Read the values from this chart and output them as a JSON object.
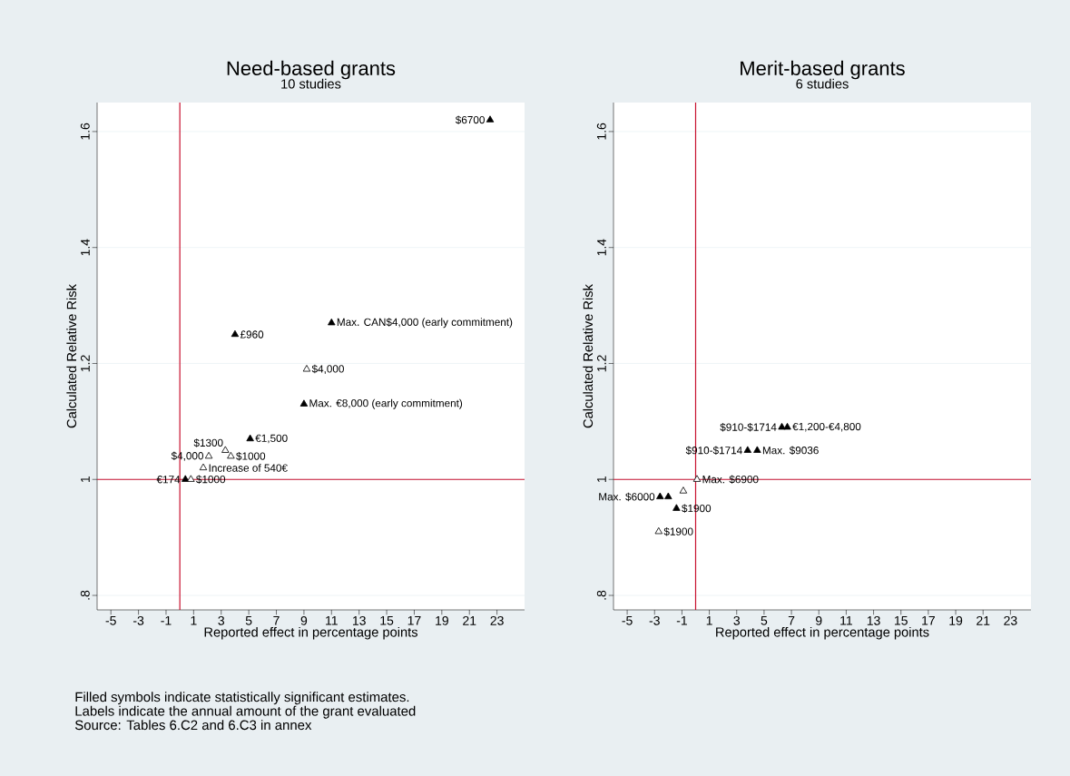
{
  "chart_data": [
    {
      "type": "scatter",
      "title": "Need-based grants",
      "subtitle": "10 studies",
      "xlabel": "Reported effect in percentage points",
      "ylabel": "Calculated Relative Risk",
      "xlim": [
        -6,
        25
      ],
      "ylim": [
        0.775,
        1.65
      ],
      "xticks": [
        -5,
        -3,
        -1,
        1,
        3,
        5,
        7,
        9,
        11,
        13,
        15,
        17,
        19,
        21,
        23
      ],
      "yticks": [
        {
          "value": 0.8,
          "label": ".8"
        },
        1,
        1.2,
        1.4,
        1.6
      ],
      "grid": "y",
      "marker": "triangle",
      "series": [
        {
          "color": "#000000",
          "x": [
            22.5,
            11.0,
            4.0,
            9.0,
            5.1,
            0.4
          ],
          "values": [
            1.62,
            1.27,
            1.25,
            1.13,
            1.07,
            1.0
          ]
        },
        {
          "color": "#ffffff",
          "x": [
            9.2,
            3.3,
            3.7,
            2.1,
            1.7,
            0.8
          ],
          "values": [
            1.19,
            1.05,
            1.04,
            1.04,
            1.02,
            1.0
          ]
        }
      ],
      "ref_lines": [
        {
          "axis": "x",
          "value": 0,
          "color": "#c8102e"
        },
        {
          "axis": "y",
          "value": 1,
          "color": "#c8102e"
        }
      ],
      "annotations": [
        {
          "text": "$6700",
          "x": 22.5,
          "y": 1.62
        },
        {
          "text": "Max. CAN$4,000 (early commitment)",
          "x": 11.0,
          "y": 1.27
        },
        {
          "text": "£960",
          "x": 4.0,
          "y": 1.25
        },
        {
          "text": "$4,000",
          "x": 9.2,
          "y": 1.19
        },
        {
          "text": "Max. €8,000 (early commitment)",
          "x": 9.0,
          "y": 1.13
        },
        {
          "text": "€1,500",
          "x": 5.1,
          "y": 1.07
        },
        {
          "text": "$1300",
          "x": 3.3,
          "y": 1.05
        },
        {
          "text": "$1000",
          "x": 3.7,
          "y": 1.04
        },
        {
          "text": "$4,000",
          "x": 2.1,
          "y": 1.04
        },
        {
          "text": "Increase of 540€",
          "x": 1.7,
          "y": 1.02
        },
        {
          "text": "€174",
          "x": 0.4,
          "y": 1.0
        },
        {
          "text": "$1000",
          "x": 0.8,
          "y": 1.0
        },
        "Filled symbols indicate statistically significant estimates.",
        "Labels indicate the annual amount of the grant evaluated",
        "Source: Tables 6.C2 and 6.C3 in annex"
      ]
    },
    {
      "type": "scatter",
      "title": "Merit-based grants",
      "subtitle": "6 studies",
      "xlabel": "Reported effect in percentage points",
      "ylabel": "Calculated Relative Risk",
      "xlim": [
        -6,
        24.5
      ],
      "ylim": [
        0.775,
        1.65
      ],
      "xticks": [
        -5,
        -3,
        -1,
        1,
        3,
        5,
        7,
        9,
        11,
        13,
        15,
        17,
        19,
        21,
        23
      ],
      "yticks": [
        {
          "value": 0.8,
          "label": ".8"
        },
        1,
        1.2,
        1.4,
        1.6
      ],
      "grid": "y",
      "marker": "triangle",
      "series": [
        {
          "color": "#000000",
          "x": [
            6.3,
            6.7,
            3.8,
            4.5,
            -2.6,
            -2.0,
            -1.4
          ],
          "values": [
            1.09,
            1.09,
            1.05,
            1.05,
            0.97,
            0.97,
            0.95
          ]
        },
        {
          "color": "#ffffff",
          "x": [
            0.1,
            -0.9,
            -2.7
          ],
          "values": [
            1.0,
            0.98,
            0.91
          ]
        }
      ],
      "ref_lines": [
        {
          "axis": "x",
          "value": 0,
          "color": "#c8102e"
        },
        {
          "axis": "y",
          "value": 1,
          "color": "#c8102e"
        }
      ],
      "annotations": [
        {
          "text": "$910-$1714",
          "x": 6.3,
          "y": 1.09
        },
        {
          "text": "€1,200-€4,800",
          "x": 6.7,
          "y": 1.09
        },
        {
          "text": "$910-$1714",
          "x": 3.8,
          "y": 1.05
        },
        {
          "text": "Max. $9036",
          "x": 4.5,
          "y": 1.05
        },
        {
          "text": "Max. $6900",
          "x": 0.1,
          "y": 1.0
        },
        {
          "text": "Max. $6000",
          "x": -2.6,
          "y": 0.97
        },
        {
          "text": "$1900",
          "x": -1.4,
          "y": 0.95
        },
        {
          "text": "$1900",
          "x": -2.7,
          "y": 0.91
        }
      ]
    }
  ]
}
